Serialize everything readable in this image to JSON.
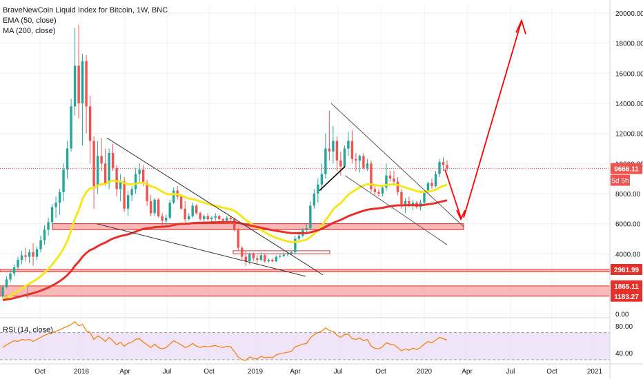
{
  "legend": {
    "title": "BraveNewCoin Liquid Index for Bitcoin, 1W, BNC",
    "ema": "EMA (50, close)",
    "ma": "MA (200, close)",
    "rsi": "RSI (14, close)"
  },
  "colors": {
    "up": "#26a69a",
    "down": "#ef5350",
    "ema": "#f5e61e",
    "ma": "#e8302a",
    "price_tag": "#ef5350",
    "rsi_line": "#f57c00",
    "rsi_band": "#e9d8f5",
    "zone_fill": "#f7a1a1",
    "zone_stroke": "#e8302a",
    "annot_red": "#ff0000"
  },
  "chart_data": [
    {
      "type": "candlestick",
      "title": "BraveNewCoin Liquid Index for Bitcoin, 1W, BNC",
      "x_ticks": [
        "Oct",
        "2018",
        "Apr",
        "Jul",
        "Oct",
        "2019",
        "Apr",
        "Jul",
        "Oct",
        "2020",
        "Apr",
        "Jul",
        "Oct",
        "2021"
      ],
      "y_ticks": [
        "20000.00",
        "18000.00",
        "16000.00",
        "14000.00",
        "12000.00",
        "10000.00",
        "8000.00",
        "6000.00",
        "4000.00",
        "0.00"
      ],
      "ylim": [
        -200,
        20500
      ],
      "price_labels": {
        "last": "9666.11",
        "countdown": "5d 5h",
        "level1": "2961.99",
        "level2": "1865.11",
        "level3": "1183.27"
      },
      "grid": true,
      "series": [
        {
          "name": "EMA (50, close)"
        },
        {
          "name": "MA (200, close)"
        }
      ],
      "candles": [
        [
          1200,
          1900,
          1000,
          1800
        ],
        [
          1800,
          2500,
          1700,
          2300
        ],
        [
          2300,
          2900,
          2100,
          2700
        ],
        [
          2700,
          3300,
          2500,
          3100
        ],
        [
          3100,
          3800,
          2900,
          3600
        ],
        [
          3600,
          4200,
          3300,
          3900
        ],
        [
          3900,
          4400,
          3500,
          3800
        ],
        [
          3800,
          4300,
          3400,
          4100
        ],
        [
          4100,
          4700,
          3200,
          3800
        ],
        [
          3800,
          4500,
          3600,
          4300
        ],
        [
          4300,
          5200,
          4100,
          4900
        ],
        [
          4900,
          5900,
          4600,
          5600
        ],
        [
          5600,
          6400,
          5200,
          6100
        ],
        [
          6100,
          7300,
          5800,
          7100
        ],
        [
          7100,
          7800,
          6400,
          7400
        ],
        [
          7400,
          8300,
          6600,
          8100
        ],
        [
          8100,
          10000,
          7500,
          9600
        ],
        [
          9600,
          11500,
          9000,
          11000
        ],
        [
          11000,
          14300,
          10800,
          13800
        ],
        [
          13800,
          19000,
          13200,
          16500
        ],
        [
          16500,
          19200,
          13000,
          14000
        ],
        [
          14000,
          17300,
          11200,
          16800
        ],
        [
          16800,
          17200,
          12000,
          13800
        ],
        [
          13800,
          14500,
          10000,
          11500
        ],
        [
          11500,
          11800,
          7000,
          8500
        ],
        [
          8500,
          11500,
          8000,
          10500
        ],
        [
          10500,
          11700,
          9500,
          10000
        ],
        [
          10000,
          11000,
          8500,
          8700
        ],
        [
          8700,
          11000,
          8300,
          10700
        ],
        [
          10700,
          11300,
          9500,
          9700
        ],
        [
          9700,
          9900,
          7800,
          8300
        ],
        [
          8300,
          9300,
          7500,
          8800
        ],
        [
          8800,
          9100,
          6800,
          7000
        ],
        [
          7000,
          8200,
          6500,
          7900
        ],
        [
          7900,
          8500,
          7500,
          8300
        ],
        [
          8300,
          9700,
          8000,
          9300
        ],
        [
          9300,
          10000,
          8800,
          9600
        ],
        [
          9600,
          9900,
          8500,
          8700
        ],
        [
          8700,
          8900,
          7200,
          7500
        ],
        [
          7500,
          7900,
          6500,
          6700
        ],
        [
          6700,
          7700,
          6500,
          7600
        ],
        [
          7600,
          7700,
          6400,
          6500
        ],
        [
          6500,
          6700,
          5900,
          6200
        ],
        [
          6200,
          6600,
          5800,
          6400
        ],
        [
          6400,
          7600,
          6300,
          7400
        ],
        [
          7400,
          8400,
          7300,
          8200
        ],
        [
          8200,
          8500,
          7600,
          7800
        ],
        [
          7800,
          7900,
          6900,
          7000
        ],
        [
          7000,
          7500,
          6100,
          6300
        ],
        [
          6300,
          6700,
          6200,
          6500
        ],
        [
          6500,
          7400,
          6400,
          7200
        ],
        [
          7200,
          7300,
          6600,
          6700
        ],
        [
          6700,
          6800,
          6200,
          6300
        ],
        [
          6300,
          6600,
          6100,
          6500
        ],
        [
          6500,
          6700,
          6200,
          6300
        ],
        [
          6300,
          6500,
          6100,
          6400
        ],
        [
          6400,
          6700,
          6200,
          6500
        ],
        [
          6500,
          6600,
          6200,
          6300
        ],
        [
          6300,
          6400,
          6100,
          6200
        ],
        [
          6200,
          6500,
          6100,
          6400
        ],
        [
          6400,
          6500,
          6200,
          6300
        ],
        [
          6300,
          6400,
          5500,
          5600
        ],
        [
          5600,
          5700,
          4200,
          4400
        ],
        [
          4400,
          4500,
          3600,
          3800
        ],
        [
          3800,
          4200,
          3200,
          3500
        ],
        [
          3500,
          4100,
          3300,
          4000
        ],
        [
          4000,
          4100,
          3500,
          3700
        ],
        [
          3700,
          3900,
          3300,
          3600
        ],
        [
          3600,
          4100,
          3500,
          3900
        ],
        [
          3900,
          4000,
          3400,
          3500
        ],
        [
          3500,
          3700,
          3400,
          3600
        ],
        [
          3600,
          3700,
          3450,
          3500
        ],
        [
          3500,
          3900,
          3450,
          3800
        ],
        [
          3800,
          4000,
          3700,
          3850
        ],
        [
          3850,
          4100,
          3800,
          3950
        ],
        [
          3950,
          4100,
          3850,
          4000
        ],
        [
          4000,
          4200,
          3900,
          4100
        ],
        [
          4100,
          5200,
          4000,
          5000
        ],
        [
          5000,
          5500,
          4900,
          5200
        ],
        [
          5200,
          5700,
          5100,
          5600
        ],
        [
          5600,
          6000,
          5300,
          5700
        ],
        [
          5700,
          7500,
          5600,
          7200
        ],
        [
          7200,
          8300,
          7000,
          8000
        ],
        [
          8000,
          9000,
          7400,
          8600
        ],
        [
          8600,
          10000,
          8200,
          9300
        ],
        [
          9300,
          12000,
          9000,
          11000
        ],
        [
          11000,
          13500,
          10200,
          10800
        ],
        [
          10800,
          12500,
          10000,
          11500
        ],
        [
          11500,
          11800,
          9500,
          10200
        ],
        [
          10200,
          10800,
          9200,
          9800
        ],
        [
          9800,
          11200,
          9700,
          11000
        ],
        [
          11000,
          12100,
          10500,
          11500
        ],
        [
          11500,
          12200,
          10000,
          10300
        ],
        [
          10300,
          10700,
          9500,
          10200
        ],
        [
          10200,
          10600,
          9400,
          10500
        ],
        [
          10500,
          10700,
          9600,
          9700
        ],
        [
          9700,
          10300,
          9500,
          10000
        ],
        [
          10000,
          10200,
          8100,
          8300
        ],
        [
          8300,
          8600,
          7900,
          8100
        ],
        [
          8100,
          8300,
          7800,
          8000
        ],
        [
          8000,
          8600,
          7800,
          8400
        ],
        [
          8400,
          10000,
          8200,
          9200
        ],
        [
          9200,
          9500,
          8800,
          9000
        ],
        [
          9000,
          9500,
          8600,
          8800
        ],
        [
          8800,
          9100,
          7900,
          8100
        ],
        [
          8100,
          8300,
          7000,
          7300
        ],
        [
          7300,
          7700,
          6700,
          7500
        ],
        [
          7500,
          7800,
          7100,
          7200
        ],
        [
          7200,
          7600,
          6900,
          7400
        ],
        [
          7400,
          7500,
          7000,
          7100
        ],
        [
          7100,
          7600,
          6900,
          7400
        ],
        [
          7400,
          8200,
          7300,
          8100
        ],
        [
          8100,
          8800,
          8000,
          8700
        ],
        [
          8700,
          9000,
          8300,
          8500
        ],
        [
          8500,
          9500,
          8400,
          9300
        ],
        [
          9300,
          10300,
          9100,
          10100
        ],
        [
          10100,
          10400,
          9500,
          9900
        ],
        [
          9900,
          10200,
          9500,
          9666.11
        ]
      ]
    },
    {
      "type": "line",
      "title": "RSI (14, close)",
      "y_ticks": [
        "80.00",
        "40.00"
      ],
      "ylim": [
        28,
        90
      ],
      "band": [
        30,
        70
      ],
      "grid": true,
      "values": [
        48,
        52,
        55,
        58,
        57,
        60,
        59,
        60,
        57,
        60,
        63,
        66,
        68,
        70,
        72,
        74,
        77,
        79,
        82,
        86,
        80,
        82,
        73,
        70,
        60,
        65,
        62,
        57,
        63,
        58,
        52,
        56,
        50,
        54,
        56,
        60,
        61,
        56,
        52,
        48,
        53,
        48,
        46,
        48,
        53,
        58,
        55,
        52,
        48,
        50,
        54,
        50,
        48,
        50,
        49,
        50,
        51,
        49,
        48,
        50,
        49,
        42,
        34,
        30,
        29,
        34,
        32,
        31,
        35,
        33,
        34,
        33,
        37,
        39,
        40,
        41,
        42,
        49,
        51,
        53,
        54,
        62,
        67,
        70,
        72,
        77,
        73,
        72,
        66,
        63,
        67,
        68,
        61,
        60,
        62,
        58,
        60,
        50,
        47,
        46,
        49,
        55,
        53,
        52,
        48,
        43,
        46,
        44,
        47,
        45,
        48,
        53,
        57,
        55,
        59,
        63,
        61,
        59
      ]
    }
  ]
}
